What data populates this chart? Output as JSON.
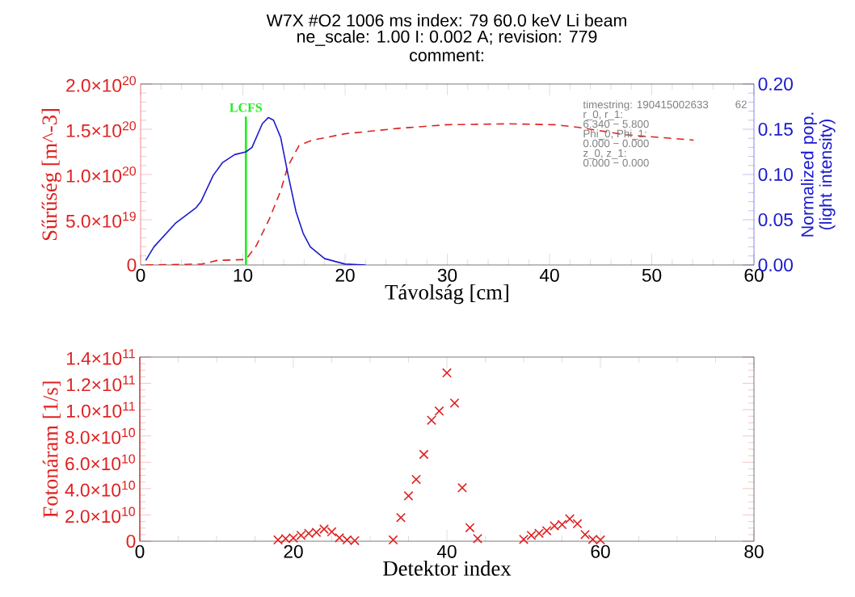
{
  "chart_data": [
    {
      "type": "line",
      "title": "W7X #O2 1006 ms index:  79 60.0 keV Li beam",
      "subtitle": "ne_scale: 1.00 I: 0.002 A; revision: 779",
      "annotations": [
        "comment:",
        "timestring: 190415002633",
        "r_0, r_1:",
        "6.340 − 5.800",
        "Phi_0, Phi_1:",
        "0.000 − 0.000",
        "z_0, z_1:",
        "0.000 − 0.000",
        "62"
      ],
      "xlabel": "Távolság [cm]",
      "ylabel": "Sűrűség [m^-3]",
      "y2label": "Normalized pop. (light intensity)",
      "xlim": [
        0,
        60
      ],
      "xticks": [
        0,
        10,
        20,
        30,
        40,
        50,
        60
      ],
      "ylim": [
        0,
        2e+20
      ],
      "yticks": [
        {
          "value": 0,
          "label": "0"
        },
        {
          "value": 5e+19,
          "label": "5.0×10$^{19}$"
        },
        {
          "value": 1e+20,
          "label": "1.0×10$^{20}$"
        },
        {
          "value": 1.5e+20,
          "label": "1.5×10$^{20}$"
        },
        {
          "value": 2e+20,
          "label": "2.0×10$^{20}$"
        }
      ],
      "y2lim": [
        0,
        0.2
      ],
      "y2ticks": [
        {
          "value": 0,
          "label": "0.00"
        },
        {
          "value": 0.05,
          "label": "0.05"
        },
        {
          "value": 0.1,
          "label": "0.10"
        },
        {
          "value": 0.15,
          "label": "0.15"
        },
        {
          "value": 0.2,
          "label": "0.20"
        }
      ],
      "ref_lines": [
        {
          "axis": "x",
          "value": 10.3,
          "label": "LCFS",
          "color": "#22ee22"
        }
      ],
      "marker": "none",
      "series": [
        {
          "color": "#dd2222",
          "line_style": "dashed",
          "x": [
            0.5,
            6,
            7.5,
            10.3,
            11.3,
            12.6,
            13.7,
            14.4,
            15.5,
            16.8,
            20,
            25.2,
            30,
            36,
            40.5,
            42.9,
            47.4,
            54.1
          ],
          "values": [
            0,
            1e+18,
            5e+18,
            6e+18,
            2.1e+19,
            5.1e+19,
            8.2e+19,
            1.09e+20,
            1.32e+20,
            1.38e+20,
            1.45e+20,
            1.51e+20,
            1.55e+20,
            1.56e+20,
            1.55e+20,
            1.52e+20,
            1.44e+20,
            1.38e+20
          ]
        },
        {
          "color": "#1a1ad0",
          "line_style": "solid",
          "axis": "y2",
          "x": [
            0.5,
            1.3,
            3.4,
            5.4,
            5.9,
            7.1,
            8.0,
            9.2,
            10.3,
            10.9,
            11.9,
            12.5,
            13.0,
            13.7,
            14.4,
            15.2,
            15.9,
            16.6,
            18,
            20,
            22
          ],
          "values": [
            0.005,
            0.02,
            0.046,
            0.063,
            0.07,
            0.099,
            0.113,
            0.122,
            0.125,
            0.13,
            0.156,
            0.163,
            0.16,
            0.141,
            0.101,
            0.059,
            0.035,
            0.02,
            0.007,
            0.001,
            0
          ]
        }
      ]
    },
    {
      "type": "scatter",
      "xlabel": "Detektor index",
      "ylabel": "Fotonáram [1/s]",
      "xlim": [
        0,
        80
      ],
      "xticks": [
        0,
        20,
        40,
        60,
        80
      ],
      "ylim": [
        0,
        140000000000.0
      ],
      "yticks": [
        {
          "value": 0,
          "label": "0"
        },
        {
          "value": 20000000000.0,
          "label": "2.0×10$^{10}$"
        },
        {
          "value": 40000000000.0,
          "label": "4.0×10$^{10}$"
        },
        {
          "value": 60000000000.0,
          "label": "6.0×10$^{10}$"
        },
        {
          "value": 80000000000.0,
          "label": "8.0×10$^{10}$"
        },
        {
          "value": 100000000000.0,
          "label": "1.0×10$^{11}$"
        },
        {
          "value": 120000000000.0,
          "label": "1.2×10$^{11}$"
        },
        {
          "value": 140000000000.0,
          "label": "1.4×10$^{11}$"
        }
      ],
      "marker": "cross",
      "series": [
        {
          "color": "#e02020",
          "x": [
            18,
            19,
            20,
            21,
            22,
            23,
            24,
            25,
            26,
            27,
            28,
            33,
            34,
            35,
            36,
            37,
            38,
            39,
            40,
            41,
            42,
            43,
            44,
            50,
            51,
            52,
            53,
            54,
            55,
            56,
            57,
            58,
            59,
            60
          ],
          "values": [
            1000000000.0,
            2000000000.0,
            2500000000.0,
            4500000000.0,
            6000000000.0,
            6800000000.0,
            9200000000.0,
            7200000000.0,
            2600000000.0,
            1000000000.0,
            500000000.0,
            1000000000.0,
            18000000000.0,
            34500000000.0,
            47000000000.0,
            66000000000.0,
            92000000000.0,
            99000000000.0,
            128000000000.0,
            105000000000.0,
            40600000000.0,
            10300000000.0,
            2000000000.0,
            1400000000.0,
            4500000000.0,
            6000000000.0,
            8000000000.0,
            11700000000.0,
            12700000000.0,
            17000000000.0,
            13300000000.0,
            5100000000.0,
            1400000000.0,
            1000000000.0
          ]
        }
      ]
    }
  ]
}
